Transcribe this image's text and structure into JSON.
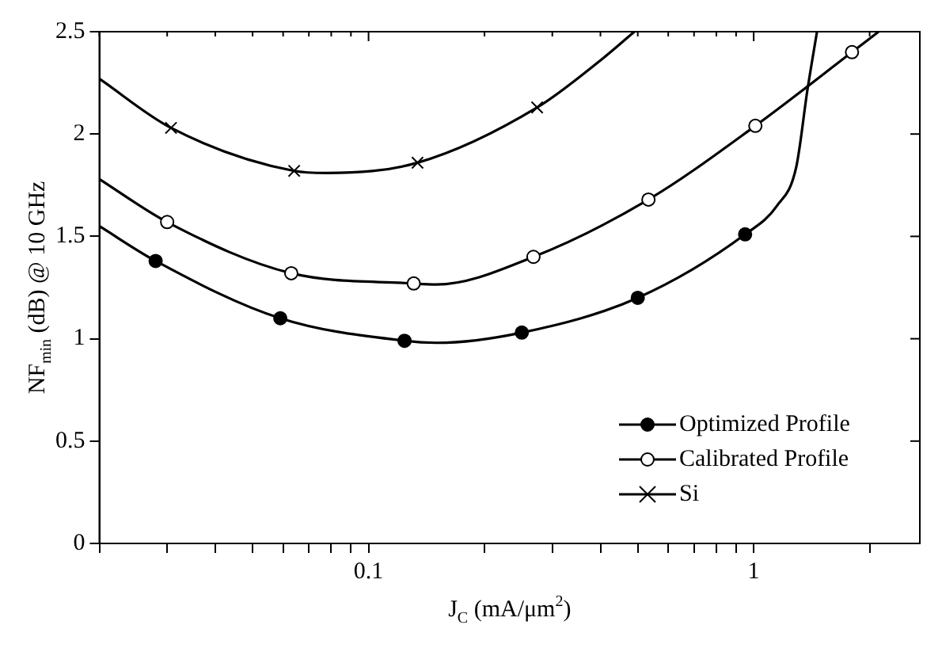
{
  "chart_data": {
    "type": "line",
    "xlabel": "J$_{C}$ (mA/μm$^{2}$)",
    "ylabel": "NF$_{min}$ (dB) @ 10 GHz",
    "log": "x",
    "xlim": [
      0.02,
      2.7
    ],
    "xticks": [
      {
        "value": 0.02,
        "label": null
      },
      {
        "value": 0.03,
        "label": null
      },
      {
        "value": 0.04,
        "label": null
      },
      {
        "value": 0.05,
        "label": null
      },
      {
        "value": 0.06,
        "label": null
      },
      {
        "value": 0.07,
        "label": null
      },
      {
        "value": 0.08,
        "label": null
      },
      {
        "value": 0.09,
        "label": null
      },
      0.1,
      {
        "value": 0.2,
        "label": null
      },
      {
        "value": 0.3,
        "label": null
      },
      {
        "value": 0.4,
        "label": null
      },
      {
        "value": 0.5,
        "label": null
      },
      {
        "value": 0.6,
        "label": null
      },
      {
        "value": 0.7,
        "label": null
      },
      {
        "value": 0.8,
        "label": null
      },
      {
        "value": 0.9,
        "label": null
      },
      1,
      {
        "value": 2,
        "label": null
      }
    ],
    "ylim": [
      0,
      2.5
    ],
    "yticks": [
      0,
      0.5,
      1,
      1.5,
      2,
      2.5
    ],
    "grid": false,
    "legend": "bottom right",
    "line_style": "solid",
    "series": [
      {
        "type": "line",
        "marker": "none",
        "color": "#000000",
        "x": [
          0.02,
          0.028,
          0.059,
          0.124,
          0.15,
          0.25,
          0.5,
          0.95,
          1.15,
          1.29,
          1.38,
          1.46
        ],
        "values": [
          1.55,
          1.38,
          1.1,
          0.99,
          0.98,
          1.03,
          1.2,
          1.51,
          1.65,
          1.84,
          2.22,
          2.5
        ]
      },
      {
        "type": "line",
        "marker": "none",
        "color": "#000000",
        "x": [
          0.02,
          0.03,
          0.063,
          0.131,
          0.15,
          0.268,
          0.533,
          1.01,
          1.8,
          2.11
        ],
        "values": [
          1.78,
          1.57,
          1.32,
          1.27,
          1.265,
          1.4,
          1.68,
          2.04,
          2.4,
          2.5
        ]
      },
      {
        "type": "line",
        "marker": "none",
        "color": "#000000",
        "x": [
          0.02,
          0.0307,
          0.0641,
          0.078,
          0.134,
          0.274,
          0.4,
          0.49
        ],
        "values": [
          2.27,
          2.03,
          1.82,
          1.81,
          1.86,
          2.13,
          2.36,
          2.5
        ]
      },
      {
        "name": "Optimized Profile",
        "type": "scatter",
        "marker": "circle",
        "color": "#000000",
        "x": [
          0.028,
          0.059,
          0.124,
          0.25,
          0.5,
          0.95
        ],
        "values": [
          1.38,
          1.1,
          0.99,
          1.03,
          1.2,
          1.51
        ]
      },
      {
        "name": "Calibrated Profile",
        "type": "scatter",
        "marker": "circle",
        "color": "#ffffff",
        "x": [
          0.03,
          0.063,
          0.131,
          0.268,
          0.533,
          1.01,
          1.8
        ],
        "values": [
          1.57,
          1.32,
          1.27,
          1.4,
          1.68,
          2.04,
          2.4
        ]
      },
      {
        "name": "Si",
        "type": "scatter",
        "marker": "cross",
        "color": "#000000",
        "x": [
          0.0307,
          0.0641,
          0.134,
          0.274
        ],
        "values": [
          2.03,
          1.82,
          1.86,
          2.13
        ]
      }
    ]
  }
}
